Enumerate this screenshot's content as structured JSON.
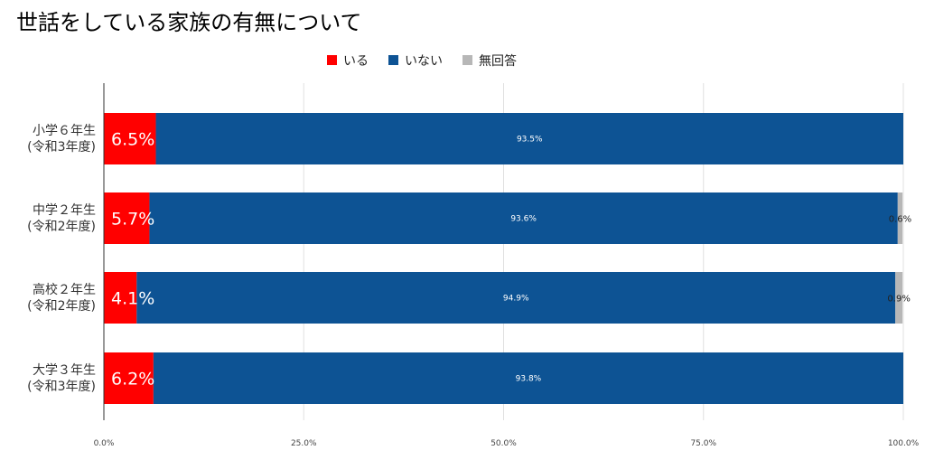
{
  "chart_data": {
    "type": "bar",
    "orientation": "horizontal",
    "stacked": true,
    "title": "世話をしている家族の有無について",
    "categories": [
      {
        "line1": "小学６年生",
        "line2": "(令和3年度)"
      },
      {
        "line1": "中学２年生",
        "line2": "(令和2年度)"
      },
      {
        "line1": "高校２年生",
        "line2": "(令和2年度)"
      },
      {
        "line1": "大学３年生",
        "line2": "(令和3年度)"
      }
    ],
    "series": [
      {
        "name": "いる",
        "color": "#ff0000",
        "values": [
          6.5,
          5.7,
          4.1,
          6.2
        ],
        "labels": [
          "6.5%",
          "5.7%",
          "4.1%",
          "6.2%"
        ]
      },
      {
        "name": "いない",
        "color": "#0d5394",
        "values": [
          93.5,
          93.6,
          94.9,
          93.8
        ],
        "labels": [
          "93.5%",
          "93.6%",
          "94.9%",
          "93.8%"
        ]
      },
      {
        "name": "無回答",
        "color": "#b7b7b7",
        "values": [
          0,
          0.6,
          0.9,
          0
        ],
        "labels": [
          "",
          "0.6%",
          "0.9%",
          ""
        ]
      }
    ],
    "xlim": [
      0,
      100
    ],
    "xticks": [
      "0.0%",
      "25.0%",
      "50.0%",
      "75.0%",
      "100.0%"
    ],
    "grid": true,
    "legend_position": "top"
  }
}
